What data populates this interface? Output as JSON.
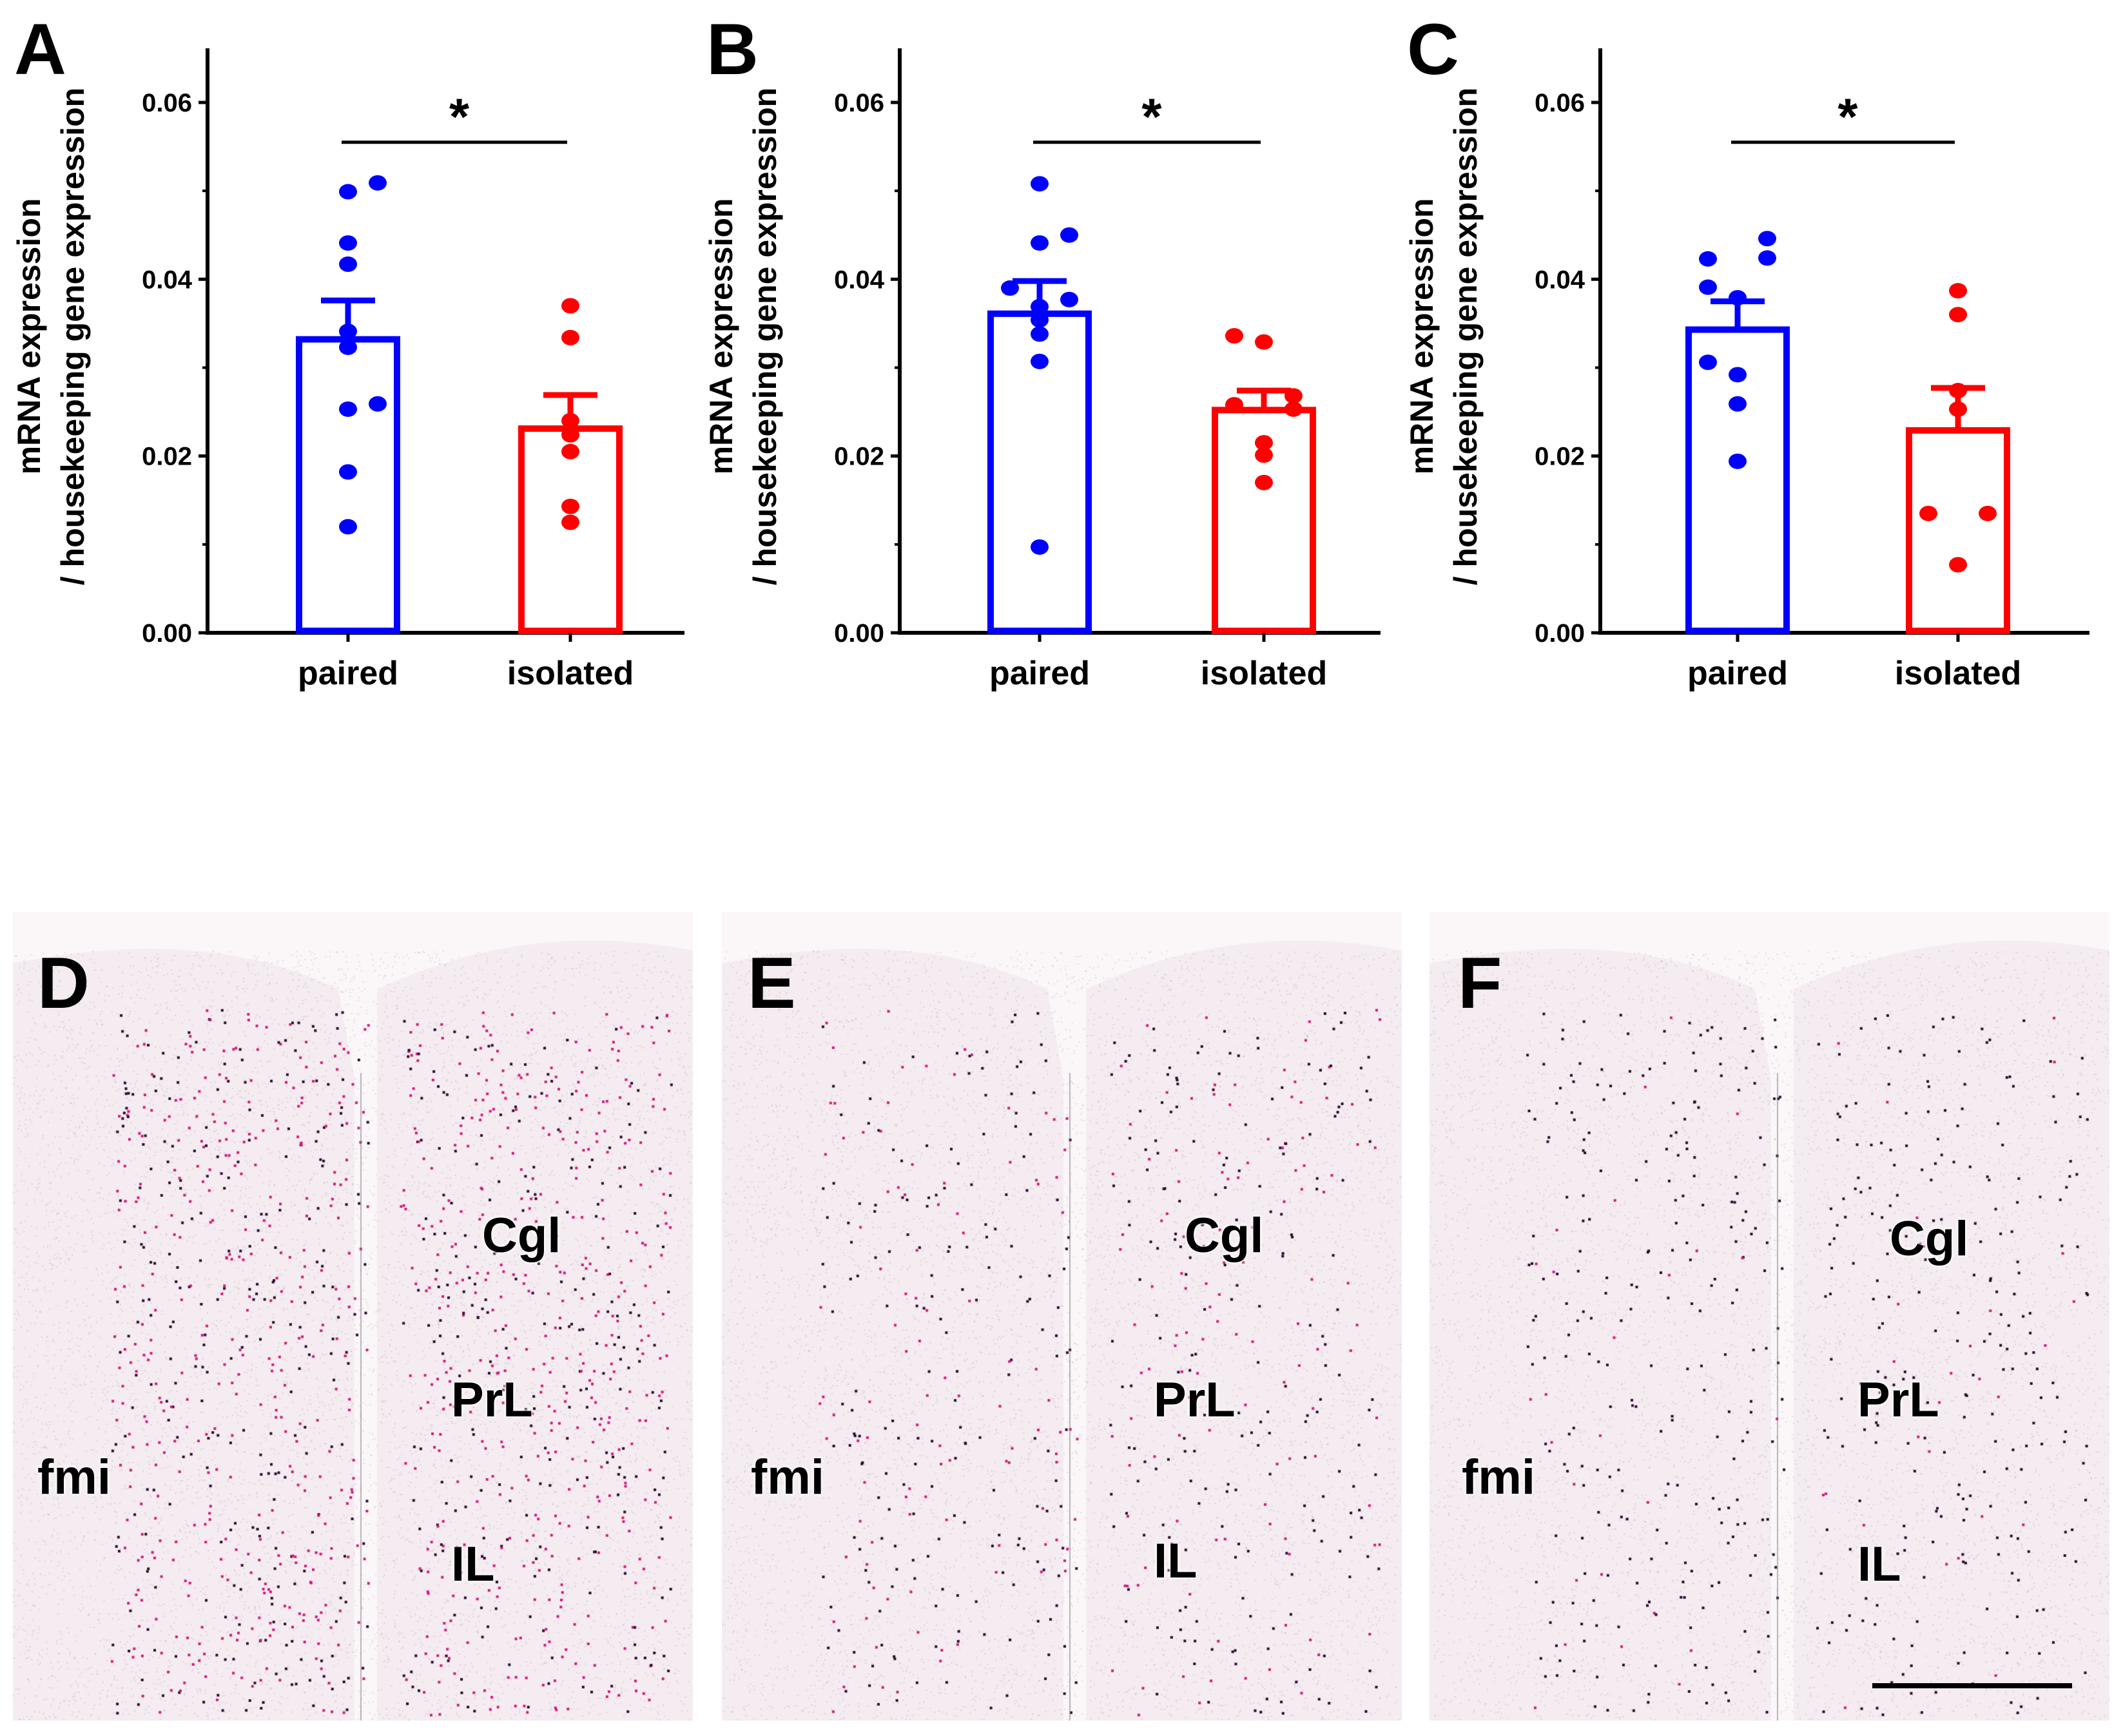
{
  "colors": {
    "paired": "#0000ff",
    "isolated": "#ff0000",
    "axis": "#000000",
    "tissue": "#f4ecf1",
    "stain": "#d4197a",
    "dark": "#2a0a2a"
  },
  "chart_data": [
    {
      "panel": "A",
      "type": "bar",
      "categories": [
        "paired",
        "isolated"
      ],
      "ylabel_line1": "mRNA expression",
      "ylabel_line2": "/ housekeeping gene expression",
      "ylim": [
        0,
        0.066
      ],
      "yticks": [
        "0.00",
        "0.02",
        "0.04",
        "0.06"
      ],
      "significance": "*",
      "series": [
        {
          "name": "paired",
          "mean": 0.0332,
          "sem_top": 0.0376,
          "points": [
            0.0509,
            0.0499,
            0.0441,
            0.0417,
            0.0341,
            0.0323,
            0.0259,
            0.0253,
            0.0182,
            0.012
          ],
          "offsets": [
            1,
            0,
            0,
            0,
            0,
            0,
            1,
            0,
            0,
            0
          ]
        },
        {
          "name": "isolated",
          "mean": 0.0231,
          "sem_top": 0.0269,
          "points": [
            0.037,
            0.0334,
            0.024,
            0.0224,
            0.0205,
            0.0143,
            0.0125
          ],
          "offsets": [
            0,
            0,
            0,
            0,
            0,
            0,
            0
          ]
        }
      ]
    },
    {
      "panel": "B",
      "type": "bar",
      "categories": [
        "paired",
        "isolated"
      ],
      "ylabel_line1": "mRNA expression",
      "ylabel_line2": "/ housekeeping gene expression",
      "ylim": [
        0,
        0.066
      ],
      "yticks": [
        "0.00",
        "0.02",
        "0.04",
        "0.06"
      ],
      "significance": "*",
      "series": [
        {
          "name": "paired",
          "mean": 0.0361,
          "sem_top": 0.0398,
          "points": [
            0.0508,
            0.045,
            0.0441,
            0.039,
            0.0377,
            0.0369,
            0.0354,
            0.0338,
            0.0307,
            0.0097
          ],
          "offsets": [
            0,
            1,
            0,
            -1,
            1,
            0,
            0,
            0,
            0,
            0
          ]
        },
        {
          "name": "isolated",
          "mean": 0.0252,
          "sem_top": 0.0274,
          "points": [
            0.0336,
            0.0329,
            0.0268,
            0.0258,
            0.0253,
            0.0215,
            0.0201,
            0.017
          ],
          "offsets": [
            -1,
            0,
            1,
            -1,
            1,
            0,
            0,
            0
          ]
        }
      ]
    },
    {
      "panel": "C",
      "type": "bar",
      "categories": [
        "paired",
        "isolated"
      ],
      "ylabel_line1": "mRNA expression",
      "ylabel_line2": "/ housekeeping gene expression",
      "ylim": [
        0,
        0.066
      ],
      "yticks": [
        "0.00",
        "0.02",
        "0.04",
        "0.06"
      ],
      "significance": "*",
      "series": [
        {
          "name": "paired",
          "mean": 0.0343,
          "sem_top": 0.0375,
          "points": [
            0.0446,
            0.0423,
            0.0424,
            0.0391,
            0.0379,
            0.0306,
            0.0292,
            0.0259,
            0.0194
          ],
          "offsets": [
            1,
            -1,
            1,
            -1,
            0,
            -1,
            0,
            0,
            0
          ]
        },
        {
          "name": "isolated",
          "mean": 0.0229,
          "sem_top": 0.0277,
          "points": [
            0.0387,
            0.036,
            0.0274,
            0.0253,
            0.0135,
            0.0135,
            0.0077
          ],
          "offsets": [
            0,
            0,
            0,
            0,
            -1,
            1,
            0
          ]
        }
      ]
    }
  ],
  "histology": [
    {
      "panel": "D",
      "regions": {
        "cgl": "Cgl",
        "prl": "PrL",
        "fmi": "fmi",
        "il": "IL"
      },
      "density": 1.0,
      "pink": 0.6
    },
    {
      "panel": "E",
      "regions": {
        "cgl": "Cgl",
        "prl": "PrL",
        "fmi": "fmi",
        "il": "IL"
      },
      "density": 0.45,
      "pink": 0.35
    },
    {
      "panel": "F",
      "regions": {
        "cgl": "Cgl",
        "prl": "PrL",
        "fmi": "fmi",
        "il": "IL"
      },
      "density": 0.4,
      "pink": 0.1
    }
  ]
}
